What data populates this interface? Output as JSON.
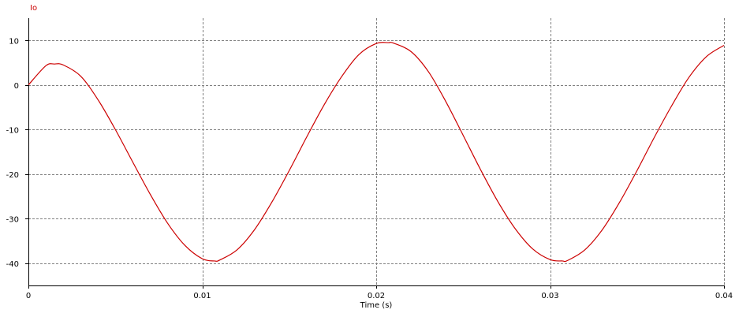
{
  "chart_data": {
    "type": "line",
    "title": "",
    "xlabel": "Time (s)",
    "ylabel": "",
    "xlim": [
      0,
      0.04
    ],
    "ylim": [
      -45,
      15
    ],
    "x_ticks": [
      0,
      0.01,
      0.02,
      0.03,
      0.04
    ],
    "x_tick_labels": [
      "0",
      "0.01",
      "0.02",
      "0.03",
      "0.04"
    ],
    "y_ticks": [
      10,
      0,
      -10,
      -20,
      -30,
      -40
    ],
    "y_tick_labels": [
      "10",
      "0",
      "-10",
      "-20",
      "-30",
      "-40"
    ],
    "grid": true,
    "legend": "top-left",
    "series": [
      {
        "name": "Io",
        "color": "#cc0000",
        "x": [
          0,
          0.001,
          0.0015,
          0.002,
          0.003,
          0.004,
          0.005,
          0.006,
          0.007,
          0.008,
          0.009,
          0.01,
          0.0107,
          0.011,
          0.012,
          0.013,
          0.014,
          0.015,
          0.016,
          0.017,
          0.018,
          0.019,
          0.02,
          0.0207,
          0.021,
          0.022,
          0.023,
          0.024,
          0.025,
          0.026,
          0.027,
          0.028,
          0.029,
          0.03,
          0.0307,
          0.031,
          0.032,
          0.033,
          0.034,
          0.035,
          0.036,
          0.037,
          0.038,
          0.039,
          0.04
        ],
        "values": [
          0,
          4.3,
          4.7,
          4.5,
          2.0,
          -3.3,
          -10.0,
          -17.3,
          -24.5,
          -31.0,
          -36.0,
          -39.0,
          -39.5,
          -39.3,
          -37.0,
          -32.5,
          -26.3,
          -19.2,
          -11.7,
          -4.5,
          1.8,
          6.8,
          9.3,
          9.5,
          9.4,
          7.5,
          3.0,
          -3.7,
          -11.3,
          -19.0,
          -26.2,
          -32.3,
          -36.8,
          -39.2,
          -39.5,
          -39.4,
          -37.0,
          -32.5,
          -26.3,
          -19.2,
          -11.7,
          -4.6,
          1.8,
          6.4,
          8.9
        ]
      }
    ]
  }
}
